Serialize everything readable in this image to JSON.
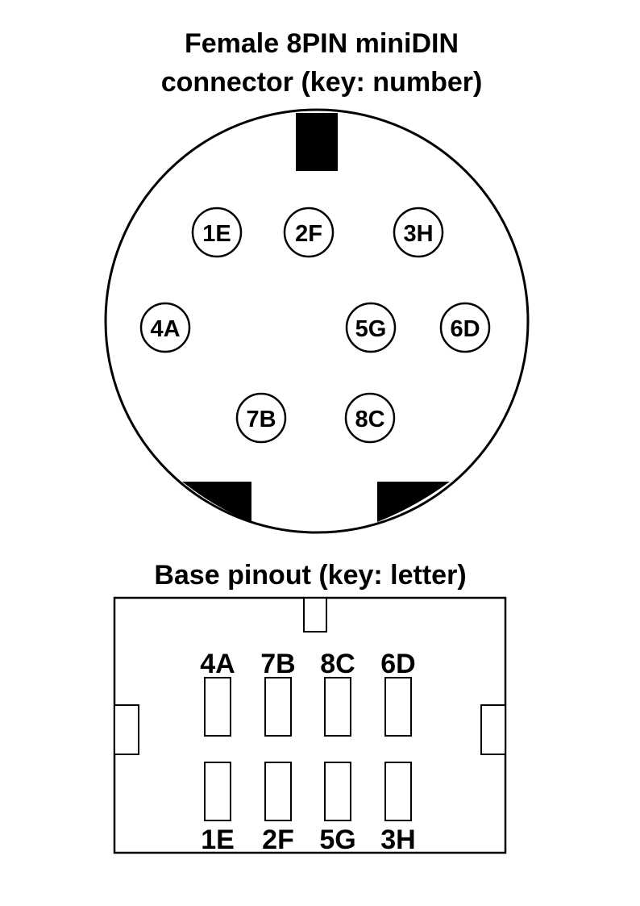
{
  "connector": {
    "title_line1": "Female 8PIN miniDIN",
    "title_line2": "connector (key: number)",
    "pins": [
      {
        "label": "1E"
      },
      {
        "label": "2F"
      },
      {
        "label": "3H"
      },
      {
        "label": "4A"
      },
      {
        "label": "5G"
      },
      {
        "label": "6D"
      },
      {
        "label": "7B"
      },
      {
        "label": "8C"
      }
    ]
  },
  "base": {
    "title": "Base pinout (key: letter)",
    "top_row": [
      "4A",
      "7B",
      "8C",
      "6D"
    ],
    "bottom_row": [
      "1E",
      "2F",
      "5G",
      "3H"
    ]
  },
  "colors": {
    "stroke": "#000000",
    "fill_key": "#000000",
    "background": "#ffffff"
  }
}
